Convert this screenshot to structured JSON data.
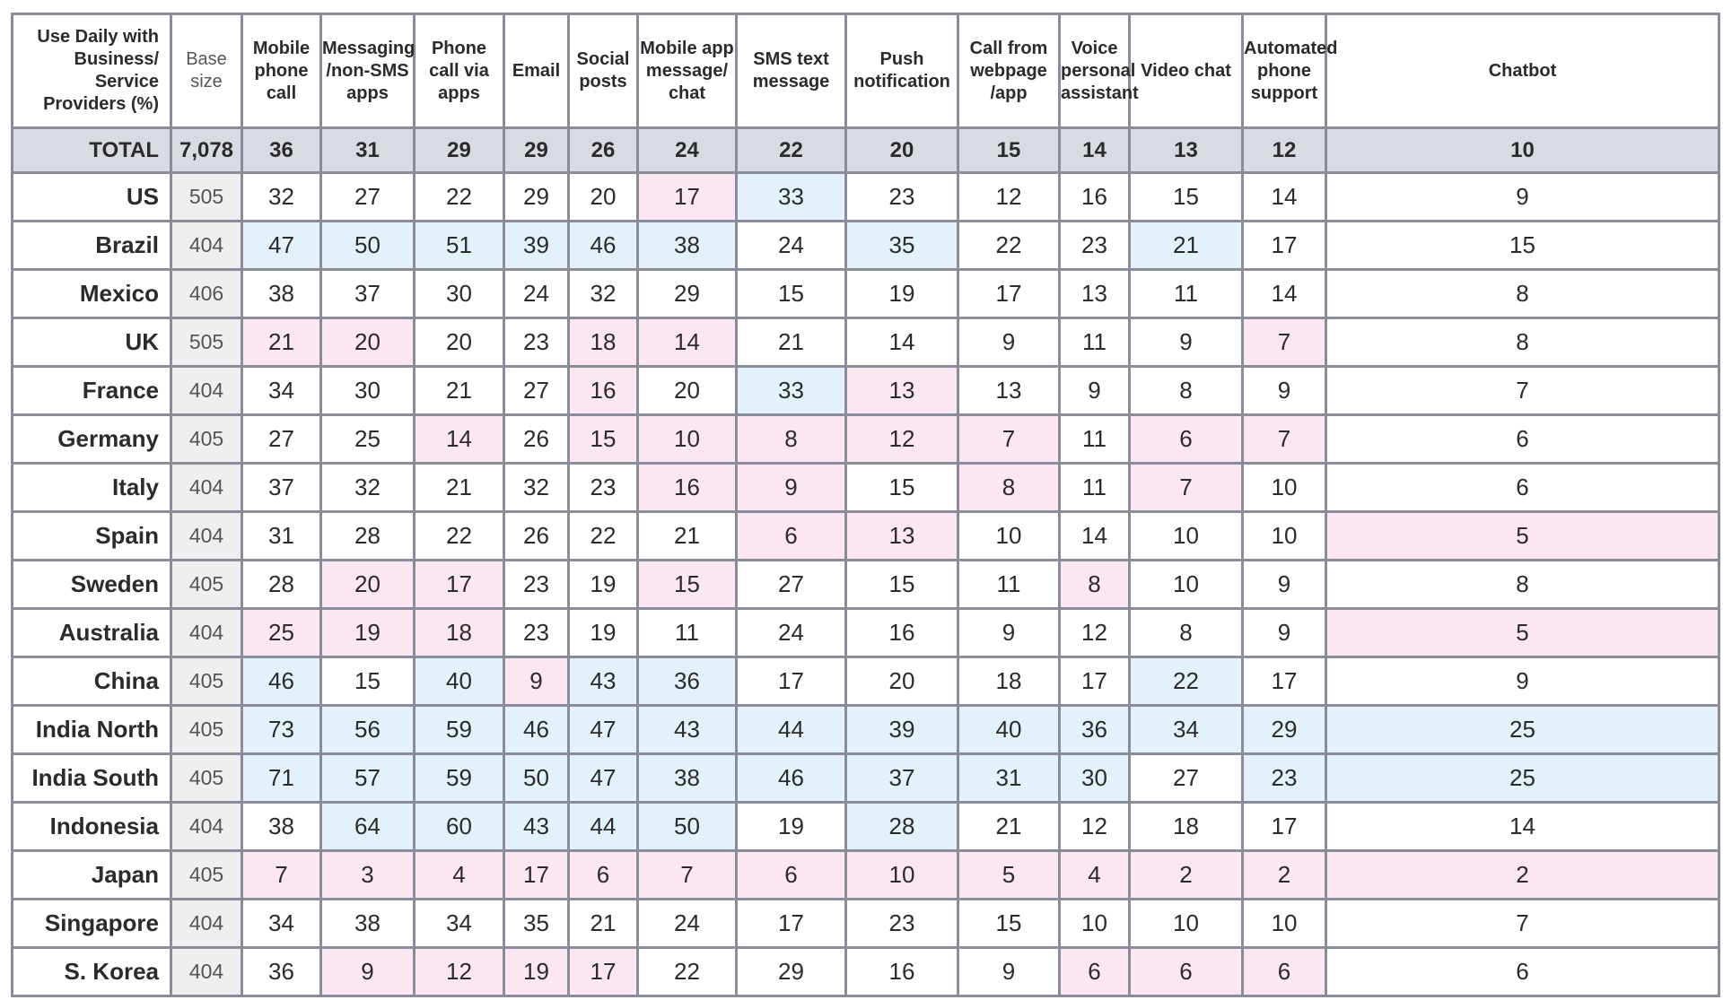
{
  "chart_data": {
    "type": "table",
    "corner_label": "Use Daily with Business/ Service Providers (%)",
    "base_label": "Base size",
    "columns": [
      "Mobile phone call",
      "Messaging /non-SMS apps",
      "Phone call via apps",
      "Email",
      "Social posts",
      "Mobile app message/ chat",
      "SMS text message",
      "Push notification",
      "Call from webpage /app",
      "Voice personal assistant",
      "Video chat",
      "Automated phone support",
      "Chatbot"
    ],
    "total": {
      "label": "TOTAL",
      "base": "7,078",
      "values": [
        36,
        31,
        29,
        29,
        26,
        24,
        22,
        20,
        15,
        14,
        13,
        12,
        10
      ]
    },
    "rows": [
      {
        "country": "US",
        "base": "505",
        "values": [
          32,
          27,
          22,
          29,
          20,
          17,
          33,
          23,
          12,
          16,
          15,
          14,
          9
        ],
        "shade": [
          "",
          "",
          "",
          "",
          "",
          "lo",
          "hi",
          "",
          "",
          "",
          "",
          "",
          ""
        ]
      },
      {
        "country": "Brazil",
        "base": "404",
        "values": [
          47,
          50,
          51,
          39,
          46,
          38,
          24,
          35,
          22,
          23,
          21,
          17,
          15
        ],
        "shade": [
          "hi",
          "hi",
          "hi",
          "hi",
          "hi",
          "hi",
          "",
          "hi",
          "",
          "",
          "hi",
          "",
          ""
        ]
      },
      {
        "country": "Mexico",
        "base": "406",
        "values": [
          38,
          37,
          30,
          24,
          32,
          29,
          15,
          19,
          17,
          13,
          11,
          14,
          8
        ],
        "shade": [
          "",
          "",
          "",
          "",
          "",
          "",
          "",
          "",
          "",
          "",
          "",
          "",
          ""
        ]
      },
      {
        "country": "UK",
        "base": "505",
        "values": [
          21,
          20,
          20,
          23,
          18,
          14,
          21,
          14,
          9,
          11,
          9,
          7,
          8
        ],
        "shade": [
          "lo",
          "lo",
          "",
          "",
          "lo",
          "lo",
          "",
          "",
          "",
          "",
          "",
          "lo",
          ""
        ]
      },
      {
        "country": "France",
        "base": "404",
        "values": [
          34,
          30,
          21,
          27,
          16,
          20,
          33,
          13,
          13,
          9,
          8,
          9,
          7
        ],
        "shade": [
          "",
          "",
          "",
          "",
          "lo",
          "",
          "hi",
          "lo",
          "",
          "",
          "",
          "",
          ""
        ]
      },
      {
        "country": "Germany",
        "base": "405",
        "values": [
          27,
          25,
          14,
          26,
          15,
          10,
          8,
          12,
          7,
          11,
          6,
          7,
          6
        ],
        "shade": [
          "",
          "",
          "lo",
          "",
          "lo",
          "lo",
          "lo",
          "lo",
          "lo",
          "",
          "lo",
          "lo",
          ""
        ]
      },
      {
        "country": "Italy",
        "base": "404",
        "values": [
          37,
          32,
          21,
          32,
          23,
          16,
          9,
          15,
          8,
          11,
          7,
          10,
          6
        ],
        "shade": [
          "",
          "",
          "",
          "",
          "",
          "lo",
          "lo",
          "",
          "lo",
          "",
          "lo",
          "",
          ""
        ]
      },
      {
        "country": "Spain",
        "base": "404",
        "values": [
          31,
          28,
          22,
          26,
          22,
          21,
          6,
          13,
          10,
          14,
          10,
          10,
          5
        ],
        "shade": [
          "",
          "",
          "",
          "",
          "",
          "",
          "lo",
          "lo",
          "",
          "",
          "",
          "",
          "lo"
        ]
      },
      {
        "country": "Sweden",
        "base": "405",
        "values": [
          28,
          20,
          17,
          23,
          19,
          15,
          27,
          15,
          11,
          8,
          10,
          9,
          8
        ],
        "shade": [
          "",
          "lo",
          "lo",
          "",
          "",
          "lo",
          "",
          "",
          "",
          "lo",
          "",
          "",
          ""
        ]
      },
      {
        "country": "Australia",
        "base": "404",
        "values": [
          25,
          19,
          18,
          23,
          19,
          11,
          24,
          16,
          9,
          12,
          8,
          9,
          5
        ],
        "shade": [
          "lo",
          "lo",
          "lo",
          "",
          "",
          "",
          "",
          "",
          "",
          "",
          "",
          "",
          "lo"
        ]
      },
      {
        "country": "China",
        "base": "405",
        "values": [
          46,
          15,
          40,
          9,
          43,
          36,
          17,
          20,
          18,
          17,
          22,
          17,
          9
        ],
        "shade": [
          "hi",
          "",
          "hi",
          "lo",
          "hi",
          "hi",
          "",
          "",
          "",
          "",
          "hi",
          "",
          ""
        ]
      },
      {
        "country": "India North",
        "base": "405",
        "values": [
          73,
          56,
          59,
          46,
          47,
          43,
          44,
          39,
          40,
          36,
          34,
          29,
          25
        ],
        "shade": [
          "hi",
          "hi",
          "hi",
          "hi",
          "hi",
          "hi",
          "hi",
          "hi",
          "hi",
          "hi",
          "hi",
          "hi",
          "hi"
        ]
      },
      {
        "country": "India South",
        "base": "405",
        "values": [
          71,
          57,
          59,
          50,
          47,
          38,
          46,
          37,
          31,
          30,
          27,
          23,
          25
        ],
        "shade": [
          "hi",
          "hi",
          "hi",
          "hi",
          "hi",
          "hi",
          "hi",
          "hi",
          "hi",
          "hi",
          "",
          "hi",
          "hi"
        ]
      },
      {
        "country": "Indonesia",
        "base": "404",
        "values": [
          38,
          64,
          60,
          43,
          44,
          50,
          19,
          28,
          21,
          12,
          18,
          17,
          14
        ],
        "shade": [
          "",
          "hi",
          "hi",
          "hi",
          "hi",
          "hi",
          "",
          "hi",
          "",
          "",
          "",
          "",
          ""
        ]
      },
      {
        "country": "Japan",
        "base": "405",
        "values": [
          7,
          3,
          4,
          17,
          6,
          7,
          6,
          10,
          5,
          4,
          2,
          2,
          2
        ],
        "shade": [
          "lo",
          "lo",
          "lo",
          "lo",
          "lo",
          "lo",
          "lo",
          "lo",
          "lo",
          "lo",
          "lo",
          "lo",
          "lo"
        ]
      },
      {
        "country": "Singapore",
        "base": "404",
        "values": [
          34,
          38,
          34,
          35,
          21,
          24,
          17,
          23,
          15,
          10,
          10,
          10,
          7
        ],
        "shade": [
          "",
          "",
          "",
          "",
          "",
          "",
          "",
          "",
          "",
          "",
          "",
          "",
          ""
        ]
      },
      {
        "country": "S. Korea",
        "base": "404",
        "values": [
          36,
          9,
          12,
          19,
          17,
          22,
          29,
          16,
          9,
          6,
          6,
          6,
          6
        ],
        "shade": [
          "",
          "lo",
          "lo",
          "lo",
          "lo",
          "",
          "",
          "",
          "",
          "lo",
          "lo",
          "lo",
          ""
        ]
      }
    ],
    "colors": {
      "header_fill": "#ffffff",
      "total_fill": "#d9dbe2",
      "base_fill": "#efeff1",
      "high_fill": "#e3f1fb",
      "low_fill": "#fce6f1",
      "border": "#8a8d99"
    }
  }
}
